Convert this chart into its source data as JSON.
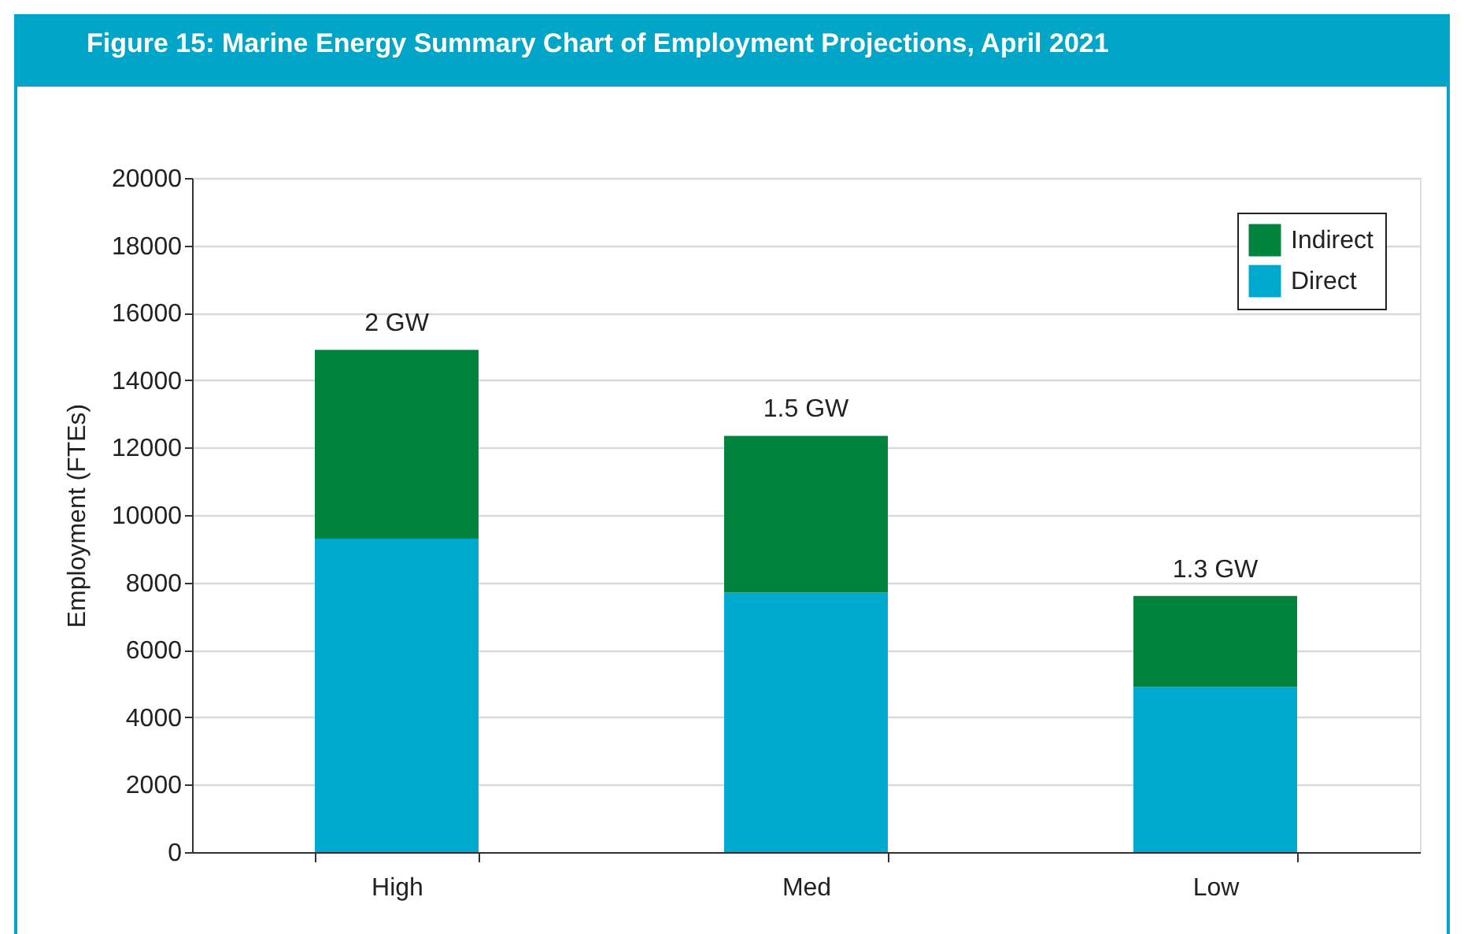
{
  "chart_data": {
    "type": "bar",
    "title": "Figure 15: Marine Energy Summary Chart of Employment Projections, April 2021",
    "ylabel": "Employment (FTEs)",
    "categories": [
      "High",
      "Med",
      "Low"
    ],
    "stacked": true,
    "series": [
      {
        "name": "Direct",
        "color": "#00a9ce",
        "values": [
          9300,
          7700,
          4900
        ]
      },
      {
        "name": "Indirect",
        "color": "#00843d",
        "values": [
          5600,
          4650,
          2700
        ]
      }
    ],
    "ylim": [
      0,
      20000
    ],
    "yticks": [
      0,
      2000,
      4000,
      6000,
      8000,
      10000,
      12000,
      14000,
      16000,
      18000,
      20000
    ],
    "grid": "y",
    "legend": "top right",
    "annotations": [
      {
        "text": "2 GW",
        "x": "High",
        "y": 14900
      },
      {
        "text": "1.5 GW",
        "x": "Med",
        "y": 12350
      },
      {
        "text": "1.3 GW",
        "x": "Low",
        "y": 7600
      }
    ]
  }
}
